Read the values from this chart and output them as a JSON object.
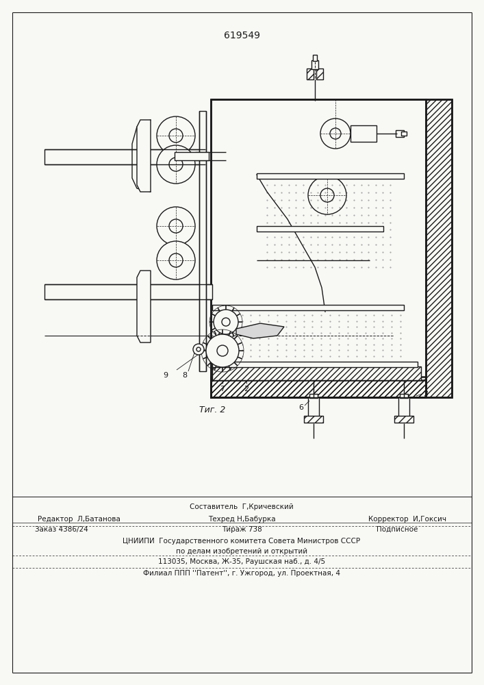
{
  "patent_number": "619549",
  "fig_label": "Τиг. 2",
  "bg_color": "#f8f8f5",
  "line_color": "#1a1a1a",
  "footer_line1": "Составитель  Г,Кричевский",
  "footer_line2_left": "Редактор  Л,Батанова",
  "footer_line2_mid": "Техред Н,Бабурка",
  "footer_line2_right": "Корректор  И,Гоксич",
  "footer_line3_left": "Заказ 4386/24",
  "footer_line3_mid": "Тираж 738",
  "footer_line3_right": "Подписное",
  "footer_line4": "ЦНИИПИ  Государственного комитета Совета Министров СССР",
  "footer_line5": "по делам изобретений и открытий",
  "footer_line6": "113035, Москва, Ж-35, Раушская наб., д. 4/5",
  "footer_line7": "Филиал ППП ''Патент'', г. Ужгород, ул. Проектная, 4"
}
